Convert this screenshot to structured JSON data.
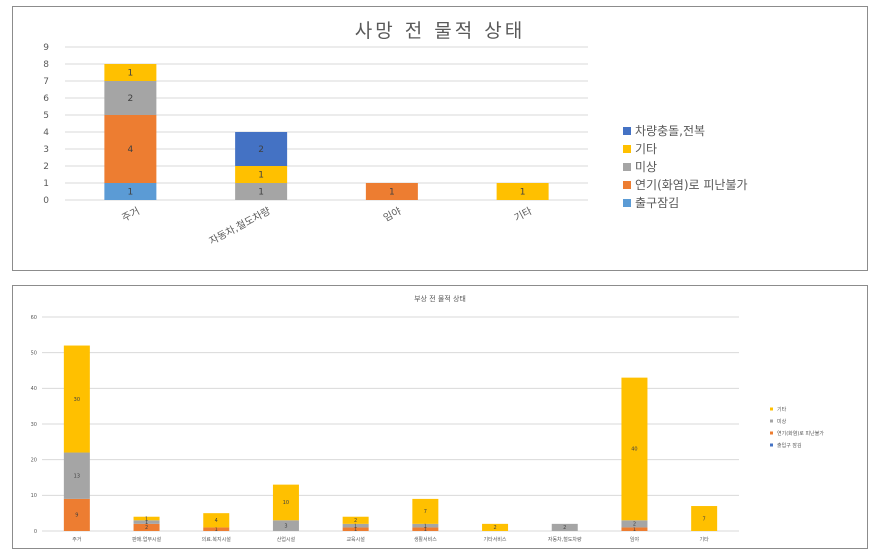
{
  "chart_data": [
    {
      "type": "bar",
      "stacked": true,
      "title": "사망 전 물적 상태",
      "categories": [
        "주거",
        "자동차,철도차량",
        "임야",
        "기타"
      ],
      "ylim": [
        0,
        9
      ],
      "yticks": [
        0,
        1,
        2,
        3,
        4,
        5,
        6,
        7,
        8,
        9
      ],
      "grid": true,
      "legend_position": "right",
      "series": [
        {
          "name": "출구잠김",
          "color": "#5b9bd5",
          "values": [
            1,
            0,
            0,
            0
          ]
        },
        {
          "name": "연기(화염)로 피난불가",
          "color": "#ed7d31",
          "values": [
            4,
            0,
            1,
            0
          ]
        },
        {
          "name": "미상",
          "color": "#a5a5a5",
          "values": [
            2,
            1,
            0,
            0
          ]
        },
        {
          "name": "기타",
          "color": "#ffc000",
          "values": [
            1,
            1,
            0,
            1
          ]
        },
        {
          "name": "차량충돌,전복",
          "color": "#4472c4",
          "values": [
            0,
            2,
            0,
            0
          ]
        }
      ]
    },
    {
      "type": "bar",
      "stacked": true,
      "title": "부상 전 물적 상태",
      "categories": [
        "주거",
        "판매.업무시설",
        "의료.복지시설",
        "산업시설",
        "교육시설",
        "생활서비스",
        "기타서비스",
        "자동차,철도차량",
        "임야",
        "기타"
      ],
      "ylim": [
        0,
        60
      ],
      "yticks": [
        0,
        10,
        20,
        30,
        40,
        50,
        60
      ],
      "grid": true,
      "legend_position": "right",
      "series": [
        {
          "name": "출입구 잠김",
          "color": "#4472c4",
          "values": [
            0,
            0,
            0,
            0,
            0,
            0,
            0,
            0,
            0,
            0
          ]
        },
        {
          "name": "연기(화염)로 피난불가",
          "color": "#ed7d31",
          "values": [
            9,
            2,
            1,
            0,
            1,
            1,
            0,
            0,
            1,
            0
          ]
        },
        {
          "name": "미상",
          "color": "#a5a5a5",
          "values": [
            13,
            1,
            0,
            3,
            1,
            1,
            0,
            2,
            2,
            0
          ]
        },
        {
          "name": "기타",
          "color": "#ffc000",
          "values": [
            30,
            1,
            4,
            10,
            2,
            7,
            2,
            0,
            40,
            7
          ]
        }
      ]
    }
  ]
}
